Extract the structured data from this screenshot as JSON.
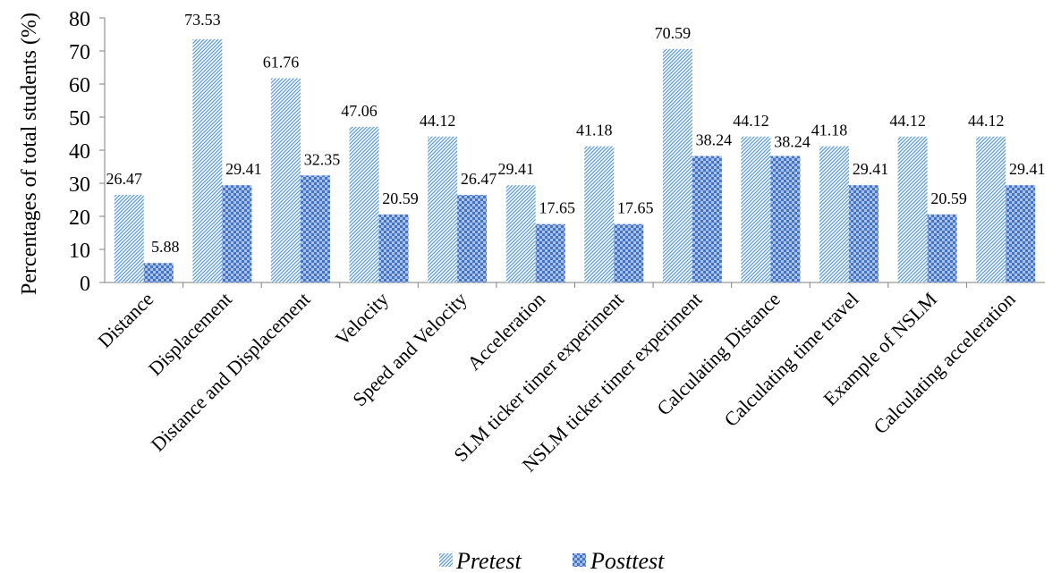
{
  "chart_data": {
    "type": "bar",
    "title": "",
    "xlabel": "",
    "ylabel": "Percentages of total students (%)",
    "ylim": [
      0,
      80
    ],
    "yticks": [
      0,
      10,
      20,
      30,
      40,
      50,
      60,
      70,
      80
    ],
    "grid": false,
    "legend_position": "bottom-center",
    "categories": [
      "Distance",
      "Displacement",
      "Distance and Displacement",
      "Velocity",
      "Speed and Velocity",
      "Acceleration",
      "SLM ticker timer experiment",
      "NSLM ticker timer experiment",
      "Calculating Distance",
      "Calculating time travel",
      "Example of NSLM",
      "Calculating acceleration"
    ],
    "series": [
      {
        "name": "Pretest",
        "pattern": "diagonal-stripes",
        "color": "#5b9bd5",
        "values": [
          26.47,
          73.53,
          61.76,
          47.06,
          44.12,
          29.41,
          41.18,
          70.59,
          44.12,
          41.18,
          44.12,
          44.12
        ],
        "labels": [
          "26.47",
          "73.53",
          "61.76",
          "47.06",
          "44.12",
          "29.41",
          "41.18",
          "70.59",
          "44.12",
          "41.18",
          "44.12",
          "44.12"
        ]
      },
      {
        "name": "Posttest",
        "pattern": "checkerboard",
        "color": "#4472c4",
        "values": [
          5.88,
          29.41,
          32.35,
          20.59,
          26.47,
          17.65,
          17.65,
          38.24,
          38.24,
          29.41,
          20.59,
          29.41
        ],
        "labels": [
          "5.88",
          "29.41",
          "32.35",
          "20.59",
          "26.47",
          "17.65",
          "17.65",
          "38.24",
          "38.24",
          "29.41",
          "20.59",
          "29.41"
        ]
      }
    ]
  }
}
